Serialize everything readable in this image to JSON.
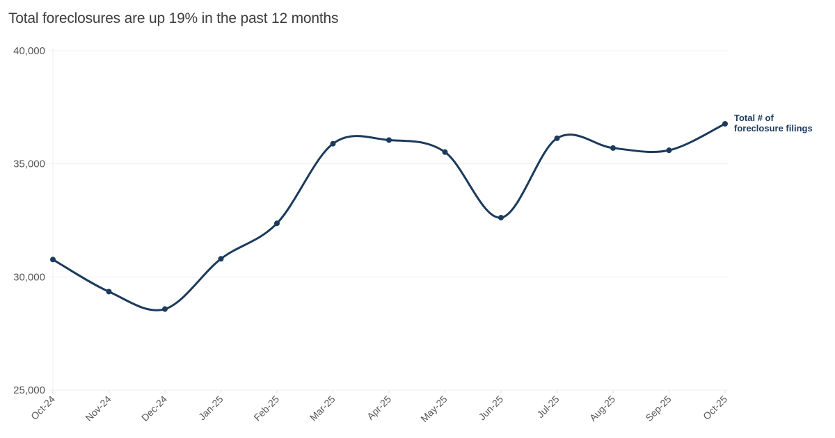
{
  "header": {
    "subtitle": "Total foreclosures are up 19% in the past 12 months"
  },
  "colors": {
    "line": "#1b3a5c",
    "grid": "#efefef",
    "axis_text": "#555555"
  },
  "chart_data": {
    "type": "line",
    "title": "",
    "subtitle": "Total foreclosures are up 19% in the past 12 months",
    "xlabel": "",
    "ylabel": "",
    "ylim": [
      25000,
      40000
    ],
    "yticks": [
      "25,000",
      "30,000",
      "35,000",
      "40,000"
    ],
    "grid": true,
    "legend_position": "inline-end",
    "categories": [
      "Oct-24",
      "Nov-24",
      "Dec-24",
      "Jan-25",
      "Feb-25",
      "Mar-25",
      "Apr-25",
      "May-25",
      "Jun-25",
      "Jul-25",
      "Aug-25",
      "Sep-25",
      "Oct-25"
    ],
    "series": [
      {
        "name": "Total # of foreclosure filings",
        "label_lines": [
          "Total # of",
          "foreclosure filings"
        ],
        "values": [
          30770,
          29350,
          28580,
          30800,
          32370,
          35890,
          36050,
          35520,
          32620,
          36130,
          35700,
          35600,
          36770
        ]
      }
    ]
  }
}
